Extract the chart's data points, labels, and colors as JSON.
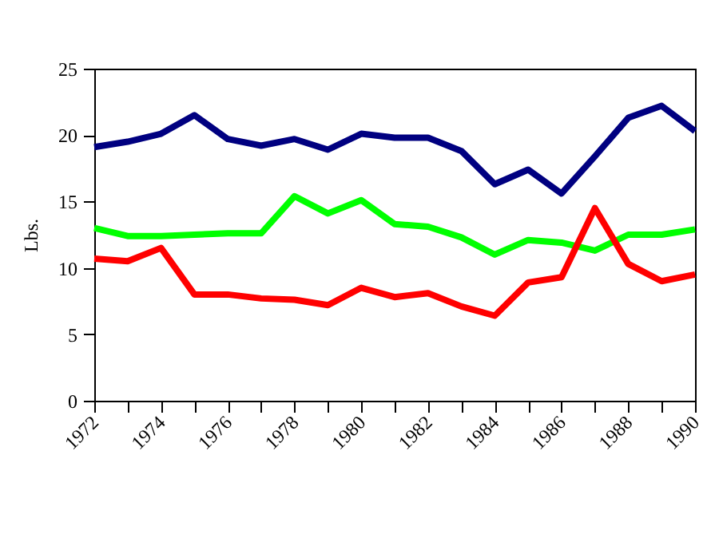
{
  "chart_data": {
    "type": "line",
    "ylabel": "Lbs.",
    "x": [
      1972,
      1973,
      1974,
      1975,
      1976,
      1977,
      1978,
      1979,
      1980,
      1981,
      1982,
      1983,
      1984,
      1985,
      1986,
      1987,
      1988,
      1989,
      1990
    ],
    "series": [
      {
        "color": "#000080",
        "values": [
          19.1,
          19.5,
          20.1,
          21.5,
          19.7,
          19.2,
          19.7,
          18.9,
          20.1,
          19.8,
          19.8,
          18.8,
          16.3,
          17.4,
          15.6,
          18.4,
          21.3,
          22.2,
          20.3
        ]
      },
      {
        "color": "#00ff00",
        "values": [
          13.0,
          12.4,
          12.4,
          12.5,
          12.6,
          12.6,
          15.4,
          14.1,
          15.1,
          13.3,
          13.1,
          12.3,
          11.0,
          12.1,
          11.9,
          11.3,
          12.5,
          12.5,
          12.9
        ]
      },
      {
        "color": "#ff0000",
        "values": [
          10.7,
          10.5,
          11.5,
          8.0,
          8.0,
          7.7,
          7.6,
          7.2,
          8.5,
          7.8,
          8.1,
          7.1,
          6.4,
          8.9,
          9.3,
          14.5,
          10.3,
          9.0,
          9.5
        ]
      }
    ],
    "xlim": [
      1972,
      1990
    ],
    "xticks": [
      1972,
      {
        "value": 1973,
        "label": null
      },
      1974,
      {
        "value": 1975,
        "label": null
      },
      1976,
      {
        "value": 1977,
        "label": null
      },
      1978,
      {
        "value": 1979,
        "label": null
      },
      1980,
      {
        "value": 1981,
        "label": null
      },
      1982,
      {
        "value": 1983,
        "label": null
      },
      1984,
      {
        "value": 1985,
        "label": null
      },
      1986,
      {
        "value": 1987,
        "label": null
      },
      1988,
      {
        "value": 1989,
        "label": null
      },
      1990
    ],
    "ylim": [
      0,
      25
    ],
    "yticks": [
      0,
      5,
      10,
      15,
      20,
      25
    ],
    "grid": false,
    "legend": false,
    "marker": "none",
    "line_style": "solid"
  }
}
